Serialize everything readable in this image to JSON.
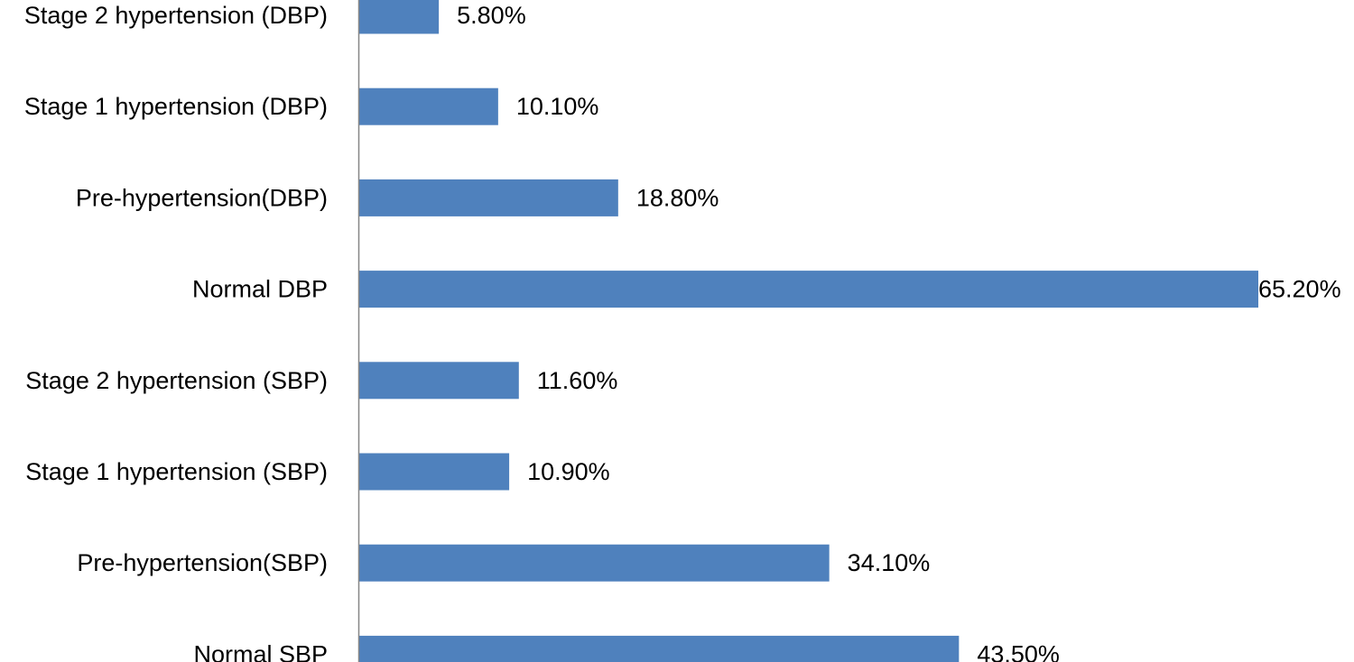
{
  "chart_data": {
    "type": "bar",
    "orientation": "horizontal",
    "categories": [
      "Stage 2 hypertension (DBP)",
      "Stage 1 hypertension (DBP)",
      "Pre-hypertension(DBP)",
      "Normal DBP",
      "Stage 2 hypertension (SBP)",
      "Stage 1 hypertension (SBP)",
      "Pre-hypertension(SBP)",
      "Normal SBP"
    ],
    "values": [
      5.8,
      10.1,
      18.8,
      65.2,
      11.6,
      10.9,
      34.1,
      43.5
    ],
    "value_labels": [
      "5.80%",
      "10.10%",
      "18.80%",
      "65.20%",
      "11.60%",
      "10.90%",
      "34.10%",
      "43.50%"
    ],
    "xlim": [
      0,
      65.2
    ],
    "grid": false,
    "legend": "none",
    "bar_color": "#4F81BD",
    "axis_color": "#868686"
  }
}
